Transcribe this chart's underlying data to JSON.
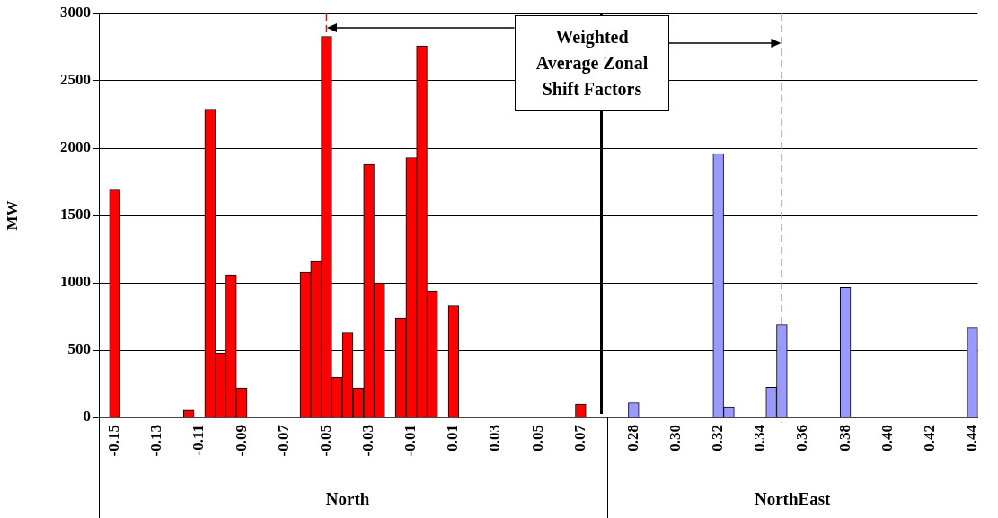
{
  "chart_data": {
    "type": "bar",
    "ylabel": "MW",
    "categories": [
      null,
      "-0.15",
      null,
      null,
      null,
      "-0.13",
      null,
      null,
      null,
      "-0.11",
      null,
      null,
      null,
      "-0.09",
      null,
      null,
      null,
      "-0.07",
      null,
      null,
      null,
      "-0.05",
      null,
      null,
      null,
      "-0.03",
      null,
      null,
      null,
      "-0.01",
      null,
      null,
      null,
      "0.01",
      null,
      null,
      null,
      "0.03",
      null,
      null,
      null,
      "0.05",
      null,
      null,
      null,
      "0.07",
      null,
      null,
      null,
      null,
      "0.28",
      null,
      null,
      null,
      "0.30",
      null,
      null,
      null,
      "0.32",
      null,
      null,
      null,
      "0.34",
      null,
      null,
      null,
      "0.36",
      null,
      null,
      null,
      "0.38",
      null,
      null,
      null,
      "0.40",
      null,
      null,
      null,
      "0.42",
      null,
      null,
      null,
      "0.44"
    ],
    "series": [
      {
        "color": "#ff0000",
        "values": [
          null,
          1690,
          null,
          null,
          null,
          null,
          null,
          null,
          55,
          null,
          2290,
          480,
          1060,
          220,
          null,
          null,
          null,
          null,
          null,
          1080,
          1160,
          2830,
          300,
          630,
          220,
          1880,
          1000,
          null,
          740,
          1930,
          2760,
          940,
          null,
          830,
          null,
          null,
          null,
          null,
          null,
          null,
          null,
          null,
          null,
          null,
          null,
          100,
          null,
          null,
          null,
          null,
          null,
          null,
          null,
          null,
          null,
          null,
          null,
          null,
          null,
          null,
          null,
          null,
          null,
          null,
          null,
          null,
          null,
          null,
          null,
          null,
          null,
          null,
          null,
          null,
          null,
          null,
          null,
          null,
          null,
          null,
          null,
          null,
          null
        ]
      },
      {
        "color": "#9999ff",
        "values": [
          null,
          null,
          null,
          null,
          null,
          null,
          null,
          null,
          null,
          null,
          null,
          null,
          null,
          null,
          null,
          null,
          null,
          null,
          null,
          null,
          null,
          null,
          null,
          null,
          null,
          null,
          null,
          null,
          null,
          null,
          null,
          null,
          null,
          null,
          null,
          null,
          null,
          null,
          null,
          null,
          null,
          null,
          null,
          null,
          null,
          null,
          null,
          null,
          null,
          null,
          110,
          null,
          null,
          null,
          null,
          null,
          null,
          null,
          1960,
          80,
          null,
          null,
          null,
          225,
          690,
          null,
          null,
          null,
          null,
          null,
          965,
          null,
          null,
          null,
          null,
          null,
          null,
          null,
          null,
          null,
          null,
          null,
          670
        ]
      }
    ],
    "ylim": [
      0,
      3000
    ],
    "yticks": [
      0,
      500,
      1000,
      1500,
      2000,
      2500,
      3000
    ],
    "grid": "y",
    "ref_lines": [
      {
        "axis": "x",
        "value": "-0.05",
        "color": "#ff0000",
        "line_style": "dashed"
      }
    ],
    "annotations": [
      "Weighted Average Zonal Shift Factors",
      "North",
      "NorthEast"
    ]
  }
}
